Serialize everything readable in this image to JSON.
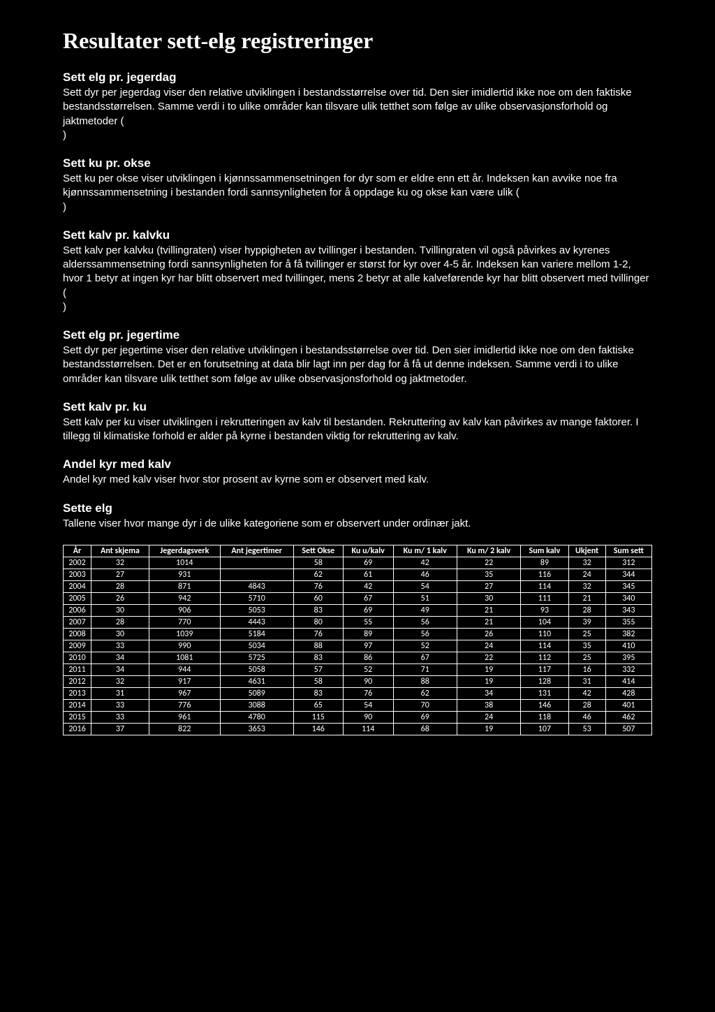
{
  "page_title": "Resultater sett-elg registreringer",
  "sections": [
    {
      "heading": "Sett elg pr. jegerdag",
      "body": "Sett dyr per jegerdag viser den relative utviklingen i bestandsstørrelse over tid. Den sier imidlertid ikke noe om den faktiske bestandsstørrelsen. Samme verdi i to ulike områder kan tilsvare ulik tetthet som følge av ulike observasjonsforhold og jaktmetoder (\n)"
    },
    {
      "heading": "Sett ku pr. okse",
      "body": "Sett ku per okse viser utviklingen i kjønnssammensetningen for dyr som er eldre enn ett år. Indeksen kan avvike noe fra kjønnssammensetning i bestanden fordi sannsynligheten for å oppdage ku og okse kan være ulik (\n)"
    },
    {
      "heading": "Sett kalv pr. kalvku",
      "body": "Sett kalv per kalvku (tvillingraten) viser hyppigheten av tvillinger i bestanden. Tvillingraten vil også påvirkes av kyrenes alderssammensetning fordi sannsynligheten for å få tvillinger er størst for kyr over 4-5 år. Indeksen kan variere mellom 1-2, hvor 1 betyr at ingen kyr har blitt observert med tvillinger, mens 2 betyr at alle kalveførende kyr har blitt observert med tvillinger (\n)"
    },
    {
      "heading": "Sett elg pr. jegertime",
      "body": "Sett dyr per jegertime viser den relative utviklingen i bestandsstørrelse over tid. Den sier imidlertid ikke noe om den faktiske bestandsstørrelsen. Det er en forutsetning at data blir lagt inn per dag for å få ut denne indeksen. Samme verdi i to ulike områder kan tilsvare ulik tetthet som følge av ulike observasjonsforhold og jaktmetoder."
    },
    {
      "heading": "Sett kalv pr. ku",
      "body": "Sett kalv per ku viser utviklingen i rekrutteringen av kalv til bestanden. Rekruttering av kalv kan påvirkes av mange faktorer. I tillegg til klimatiske forhold er alder på kyrne i bestanden viktig for rekruttering av kalv."
    },
    {
      "heading": "Andel kyr med kalv",
      "body": "Andel kyr med kalv viser hvor stor prosent av kyrne som er observert med kalv."
    },
    {
      "heading": "Sette elg",
      "body": "Tallene viser hvor mange dyr i de ulike kategoriene som er observert under ordinær jakt."
    }
  ],
  "table": {
    "columns": [
      "År",
      "Ant skjema",
      "Jegerdagsverk",
      "Ant jegertimer",
      "Sett Okse",
      "Ku u/kalv",
      "Ku m/ 1 kalv",
      "Ku m/ 2 kalv",
      "Sum kalv",
      "Ukjent",
      "Sum sett"
    ],
    "rows": [
      [
        "2002",
        "32",
        "1014",
        "",
        "58",
        "69",
        "42",
        "22",
        "89",
        "32",
        "312"
      ],
      [
        "2003",
        "27",
        "931",
        "",
        "62",
        "61",
        "46",
        "35",
        "116",
        "24",
        "344"
      ],
      [
        "2004",
        "28",
        "871",
        "4843",
        "76",
        "42",
        "54",
        "27",
        "114",
        "32",
        "345"
      ],
      [
        "2005",
        "26",
        "942",
        "5710",
        "60",
        "67",
        "51",
        "30",
        "111",
        "21",
        "340"
      ],
      [
        "2006",
        "30",
        "906",
        "5053",
        "83",
        "69",
        "49",
        "21",
        "93",
        "28",
        "343"
      ],
      [
        "2007",
        "28",
        "770",
        "4443",
        "80",
        "55",
        "56",
        "21",
        "104",
        "39",
        "355"
      ],
      [
        "2008",
        "30",
        "1039",
        "5184",
        "76",
        "89",
        "56",
        "26",
        "110",
        "25",
        "382"
      ],
      [
        "2009",
        "33",
        "990",
        "5034",
        "88",
        "97",
        "52",
        "24",
        "114",
        "35",
        "410"
      ],
      [
        "2010",
        "34",
        "1081",
        "5725",
        "83",
        "86",
        "67",
        "22",
        "112",
        "25",
        "395"
      ],
      [
        "2011",
        "34",
        "944",
        "5058",
        "57",
        "52",
        "71",
        "19",
        "117",
        "16",
        "332"
      ],
      [
        "2012",
        "32",
        "917",
        "4631",
        "58",
        "90",
        "88",
        "19",
        "128",
        "31",
        "414"
      ],
      [
        "2013",
        "31",
        "967",
        "5089",
        "83",
        "76",
        "62",
        "34",
        "131",
        "42",
        "428"
      ],
      [
        "2014",
        "33",
        "776",
        "3088",
        "65",
        "54",
        "70",
        "38",
        "146",
        "28",
        "401"
      ],
      [
        "2015",
        "33",
        "961",
        "4780",
        "115",
        "90",
        "69",
        "24",
        "118",
        "46",
        "462"
      ],
      [
        "2016",
        "37",
        "822",
        "3653",
        "146",
        "114",
        "68",
        "19",
        "107",
        "53",
        "507"
      ]
    ],
    "border_color": "#ffffff",
    "text_color": "#ffffff",
    "background_color": "#000000",
    "header_fontweight": "bold",
    "fontsize": 12
  },
  "colors": {
    "background": "#000000",
    "text": "#ffffff"
  }
}
